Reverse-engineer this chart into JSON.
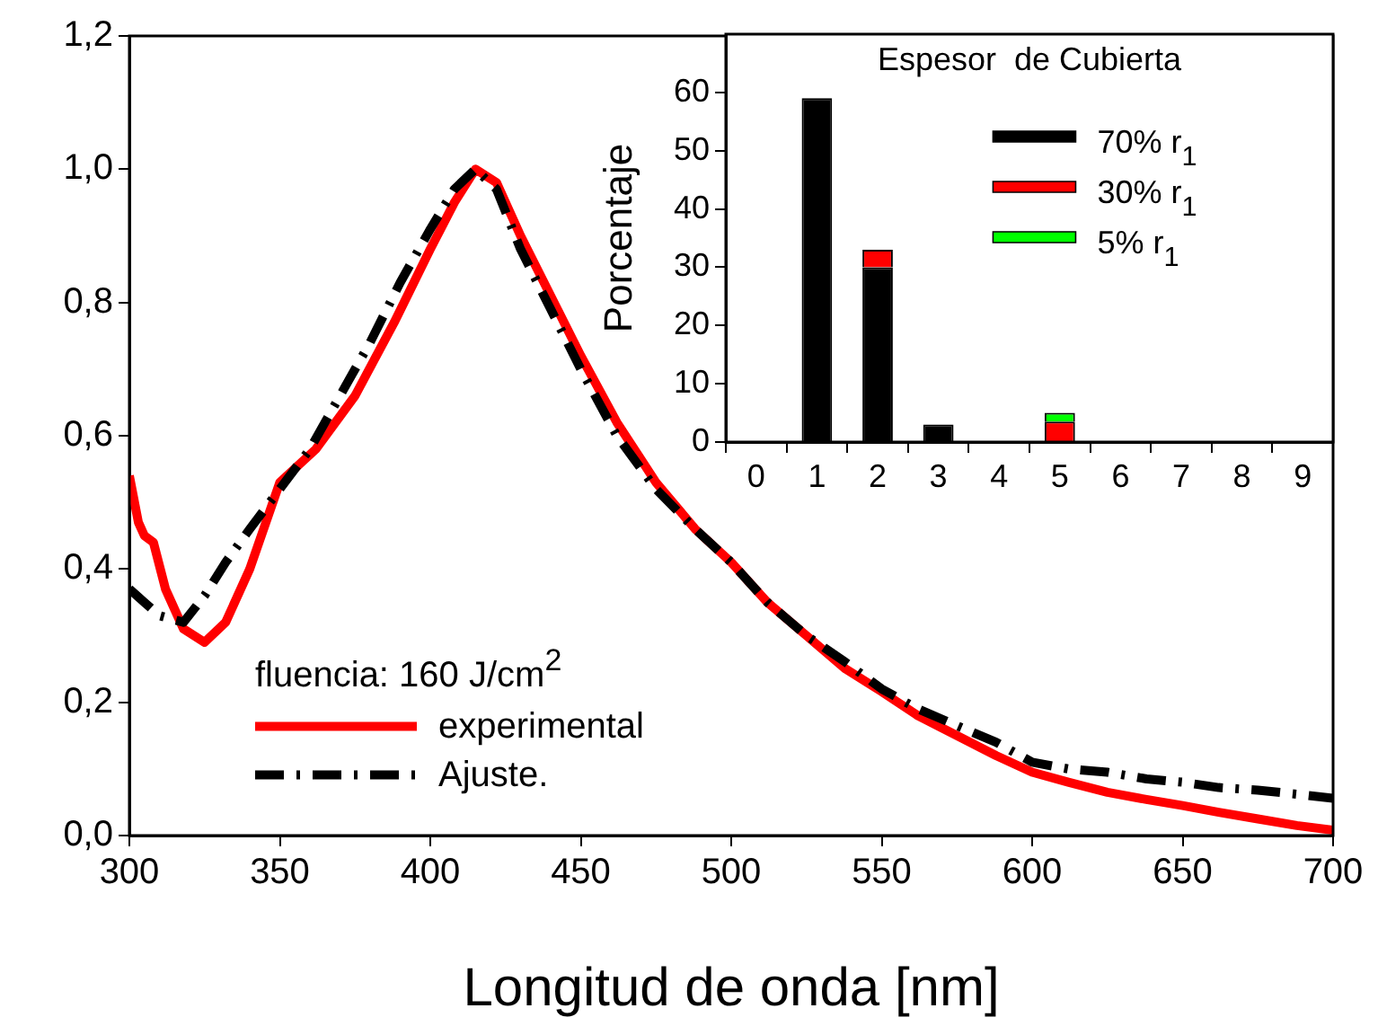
{
  "chart_data": [
    {
      "type": "line",
      "xlabel": "Longitud de onda [nm]",
      "legend_title": "fluencia: 160 J/cm$^{2}$",
      "legend": "bottom left",
      "marker": "none",
      "grid": false,
      "xlim": [
        300,
        700
      ],
      "xticks": [
        300,
        350,
        400,
        450,
        500,
        550,
        600,
        650,
        700
      ],
      "ylim": [
        0,
        1.2
      ],
      "yticks": [
        {
          "value": 0,
          "label": "0,0"
        },
        {
          "value": 0.2,
          "label": "0,2"
        },
        {
          "value": 0.4,
          "label": "0,4"
        },
        {
          "value": 0.6,
          "label": "0,6"
        },
        {
          "value": 0.8,
          "label": "0,8"
        },
        {
          "value": 1.0,
          "label": "1,0"
        },
        {
          "value": 1.2,
          "label": "1,2"
        }
      ],
      "series": [
        {
          "name": "experimental",
          "color": "#ff0000",
          "line_style": "solid",
          "x": [
            300,
            303,
            305,
            308,
            312,
            318,
            325,
            332,
            340,
            350,
            362,
            375,
            388,
            400,
            408,
            415,
            422,
            430,
            440,
            450,
            462,
            475,
            488,
            500,
            512,
            525,
            538,
            550,
            562,
            575,
            588,
            600,
            612,
            625,
            638,
            650,
            662,
            675,
            688,
            700
          ],
          "values": [
            0.54,
            0.47,
            0.45,
            0.44,
            0.37,
            0.31,
            0.29,
            0.32,
            0.4,
            0.53,
            0.58,
            0.66,
            0.77,
            0.88,
            0.95,
            1.0,
            0.98,
            0.9,
            0.81,
            0.72,
            0.62,
            0.53,
            0.46,
            0.41,
            0.35,
            0.3,
            0.25,
            0.216,
            0.18,
            0.15,
            0.12,
            0.095,
            0.08,
            0.065,
            0.054,
            0.045,
            0.035,
            0.025,
            0.015,
            0.008
          ]
        },
        {
          "name": "Ajuste.",
          "color": "#000000",
          "line_style": "dashed",
          "x": [
            300,
            305,
            310,
            318,
            325,
            332,
            340,
            350,
            360,
            370,
            380,
            390,
            400,
            408,
            415,
            422,
            430,
            440,
            450,
            462,
            475,
            488,
            500,
            512,
            525,
            538,
            550,
            562,
            575,
            588,
            600,
            612,
            625,
            638,
            650,
            662,
            675,
            688,
            700
          ],
          "values": [
            0.37,
            0.35,
            0.33,
            0.32,
            0.36,
            0.41,
            0.46,
            0.52,
            0.58,
            0.66,
            0.74,
            0.83,
            0.91,
            0.97,
            1.0,
            0.97,
            0.88,
            0.79,
            0.7,
            0.6,
            0.52,
            0.46,
            0.41,
            0.35,
            0.3,
            0.26,
            0.22,
            0.19,
            0.165,
            0.14,
            0.11,
            0.1,
            0.095,
            0.085,
            0.08,
            0.072,
            0.068,
            0.062,
            0.056
          ]
        }
      ]
    },
    {
      "type": "bar",
      "stacked": true,
      "title": "Espesor  de Cubierta",
      "ylabel": "Porcentaje",
      "legend": "top right",
      "grid": false,
      "x": [
        1,
        2,
        3,
        5
      ],
      "xlim": [
        0,
        9
      ],
      "xticks": [
        0,
        1,
        2,
        3,
        4,
        5,
        6,
        7,
        8,
        9
      ],
      "ylim": [
        0,
        70
      ],
      "yticks": [
        0,
        10,
        20,
        30,
        40,
        50,
        60
      ],
      "series": [
        {
          "name": "70% r$_{1}$",
          "color": "#000000",
          "values": [
            59,
            30,
            3,
            null
          ]
        },
        {
          "name": "30% r$_{1}$",
          "color": "#ff0000",
          "values": [
            null,
            3,
            null,
            3.5
          ]
        },
        {
          "name": "5% r$_{1}$",
          "color": "#00ff00",
          "values": [
            null,
            null,
            null,
            1.5
          ]
        }
      ]
    }
  ]
}
